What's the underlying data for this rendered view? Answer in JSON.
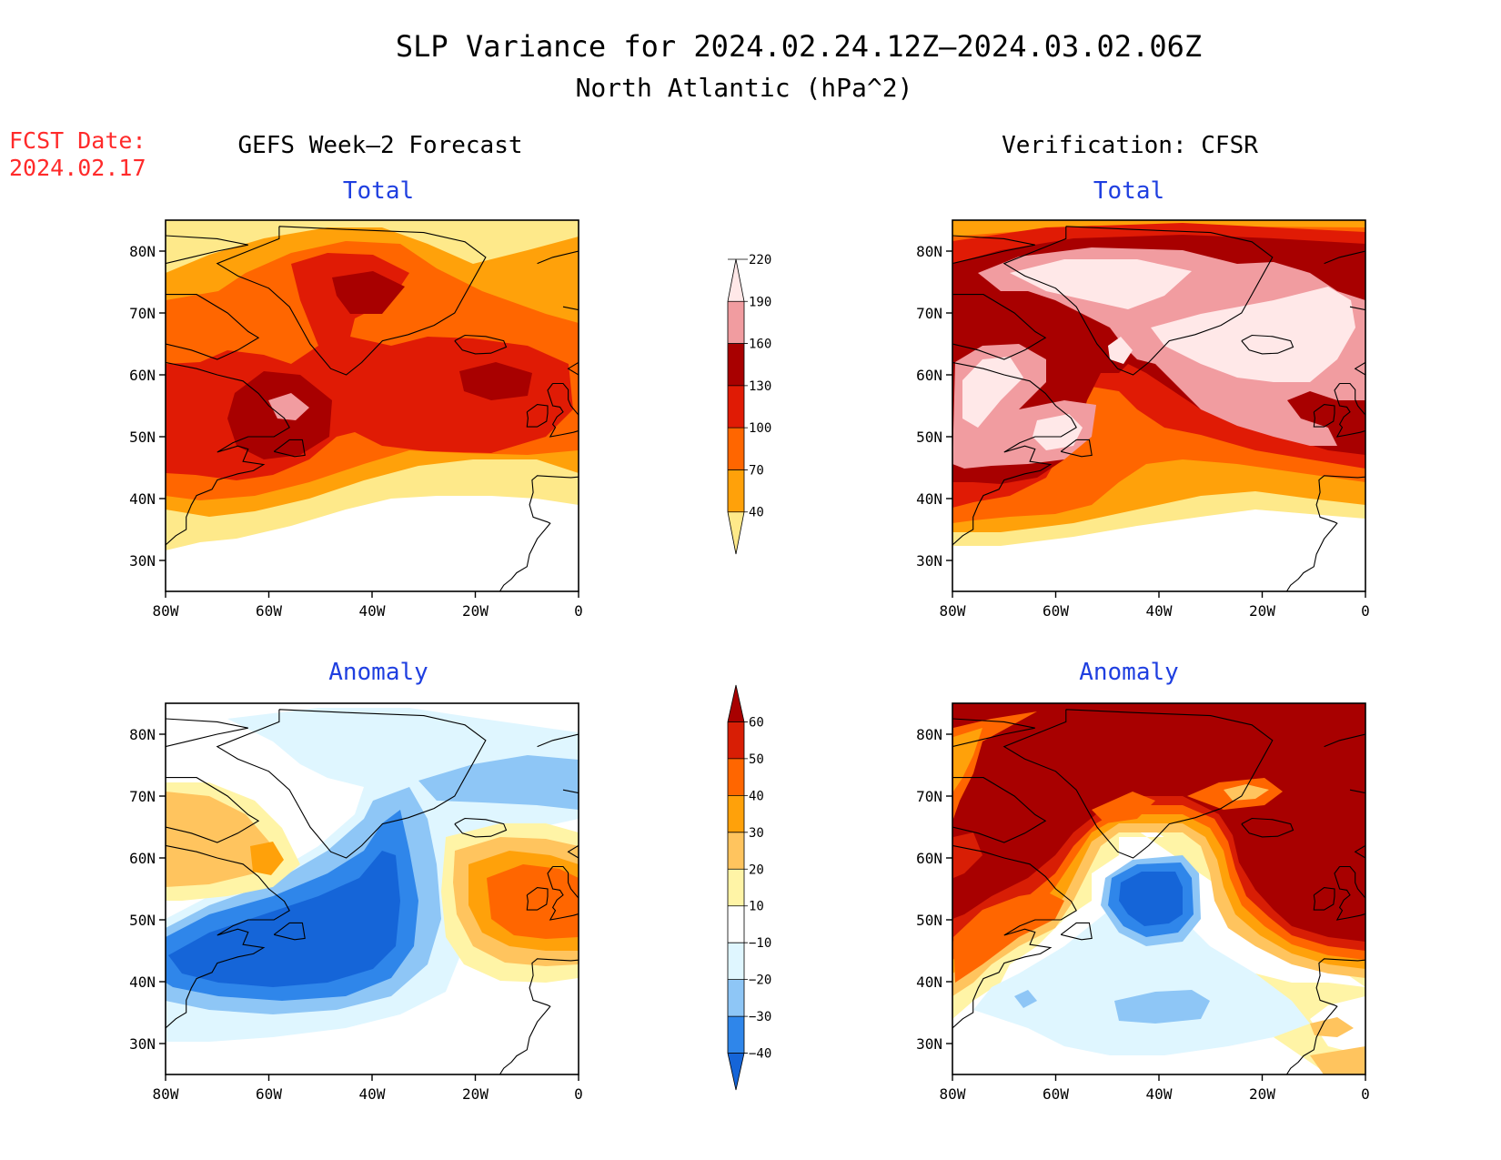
{
  "title": {
    "line1": "SLP Variance for 2024.02.24.12Z–2024.03.02.06Z",
    "line2": "North Atlantic (hPa^2)"
  },
  "fcst": {
    "label": "FCST Date:",
    "date": "2024.02.17"
  },
  "columns": {
    "left": "GEFS Week–2 Forecast",
    "right": "Verification: CFSR"
  },
  "panel_titles": {
    "total": "Total",
    "anomaly": "Anomaly"
  },
  "axes": {
    "lon_ticks": [
      {
        "value": -80,
        "label": "80W"
      },
      {
        "value": -60,
        "label": "60W"
      },
      {
        "value": -40,
        "label": "40W"
      },
      {
        "value": -20,
        "label": "20W"
      },
      {
        "value": 0,
        "label": "0"
      }
    ],
    "lat_ticks": [
      {
        "value": 30,
        "label": "30N"
      },
      {
        "value": 40,
        "label": "40N"
      },
      {
        "value": 50,
        "label": "50N"
      },
      {
        "value": 60,
        "label": "60N"
      },
      {
        "value": 70,
        "label": "70N"
      },
      {
        "value": 80,
        "label": "80N"
      }
    ],
    "lon_range": [
      -80,
      0
    ],
    "lat_range": [
      25,
      85
    ]
  },
  "colorbars": {
    "total": {
      "levels": [
        "40",
        "70",
        "100",
        "130",
        "160",
        "190",
        "220"
      ],
      "colors": [
        "#fee98a",
        "#ffa10a",
        "#ff6600",
        "#e01b05",
        "#a80000",
        "#f19ca0",
        "#ffe8e8"
      ]
    },
    "anomaly": {
      "levels": [
        "−40",
        "−30",
        "−20",
        "−10",
        "10",
        "20",
        "30",
        "40",
        "50",
        "60"
      ],
      "colors": [
        "#1565d8",
        "#2f86ea",
        "#8ec6f6",
        "#dff6ff",
        "#ffffff",
        "#fff4a6",
        "#ffc45e",
        "#ffa10a",
        "#ff6600",
        "#d81e05",
        "#a80000"
      ]
    }
  },
  "colors": {
    "title_blue": "#1f3fe0",
    "fcst_red": "#ff2a2a"
  }
}
